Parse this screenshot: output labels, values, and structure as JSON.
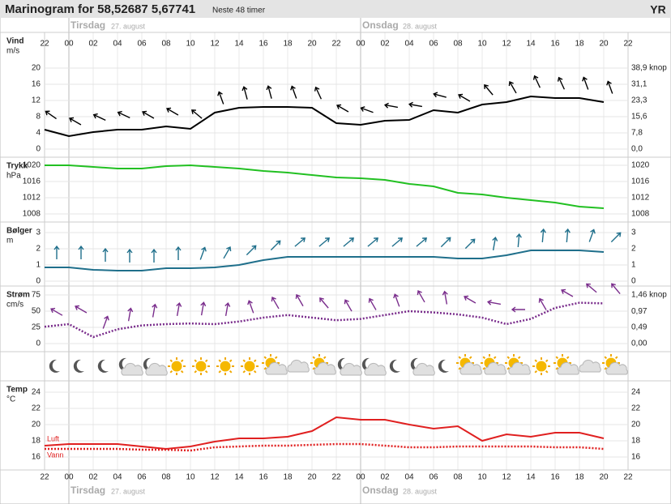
{
  "title": "Marinogram for 58,52687 5,67741",
  "subtitle": "Neste 48 timer",
  "logo": "YR",
  "time_labels": [
    "22",
    "00",
    "02",
    "04",
    "06",
    "08",
    "10",
    "12",
    "14",
    "16",
    "18",
    "20",
    "22",
    "00",
    "02",
    "04",
    "06",
    "08",
    "10",
    "12",
    "14",
    "16",
    "18",
    "20",
    "22"
  ],
  "days": [
    {
      "name": "Tirsdag",
      "date": "27. august"
    },
    {
      "name": "Onsdag",
      "date": "28. august"
    }
  ],
  "chart_data": [
    {
      "type": "line",
      "label": "Vind",
      "unit": "m/s",
      "y2unit": "knop",
      "ylim": [
        0,
        20
      ],
      "yticks": [
        0,
        4,
        8,
        12,
        16,
        20
      ],
      "y2lim": [
        0,
        38.9
      ],
      "y2ticks": [
        {
          "value": 0,
          "label": "0,0"
        },
        {
          "value": 7.8,
          "label": "7,8"
        },
        {
          "value": 15.6,
          "label": "15,6"
        },
        {
          "value": 23.3,
          "label": "23,3"
        },
        {
          "value": 31.1,
          "label": "31,1"
        },
        {
          "value": 38.9,
          "label": "38,9"
        }
      ],
      "series": [
        {
          "color": "#000000",
          "values": [
            4.8,
            3.2,
            4.2,
            4.8,
            4.8,
            5.6,
            5.0,
            9.0,
            10.2,
            10.4,
            10.4,
            10.2,
            6.4,
            6.0,
            7.0,
            7.2,
            9.6,
            9.0,
            11.0,
            11.6,
            13.0,
            12.6,
            12.6,
            11.6
          ],
          "direction": [
            305,
            300,
            295,
            295,
            300,
            300,
            310,
            340,
            345,
            345,
            340,
            335,
            300,
            290,
            280,
            280,
            285,
            300,
            320,
            330,
            335,
            335,
            340,
            340
          ]
        }
      ]
    },
    {
      "type": "line",
      "label": "Trykk",
      "unit": "hPa",
      "ylim": [
        1008,
        1020
      ],
      "yticks": [
        1008,
        1012,
        1016,
        1020
      ],
      "series": [
        {
          "color": "#22c022",
          "values": [
            1020,
            1020,
            1019.6,
            1019.2,
            1019.2,
            1019.8,
            1020,
            1019.6,
            1019.2,
            1018.6,
            1018.2,
            1017.6,
            1017.0,
            1016.8,
            1016.4,
            1015.4,
            1014.8,
            1013.2,
            1012.8,
            1012.0,
            1011.4,
            1010.8,
            1009.8,
            1009.4
          ]
        }
      ]
    },
    {
      "type": "line",
      "label": "Bølger",
      "unit": "m",
      "ylim": [
        0,
        3
      ],
      "yticks": [
        0,
        1,
        2,
        3
      ],
      "series": [
        {
          "color": "#1f6f8b",
          "values": [
            0.85,
            0.85,
            0.7,
            0.65,
            0.65,
            0.8,
            0.8,
            0.85,
            1.0,
            1.3,
            1.5,
            1.5,
            1.5,
            1.5,
            1.5,
            1.5,
            1.5,
            1.4,
            1.4,
            1.6,
            1.9,
            1.9,
            1.9,
            1.8
          ],
          "direction": [
            0,
            0,
            0,
            0,
            0,
            0,
            20,
            30,
            45,
            45,
            50,
            50,
            50,
            50,
            50,
            50,
            45,
            45,
            10,
            5,
            5,
            5,
            20,
            45
          ]
        }
      ]
    },
    {
      "type": "line",
      "label": "Strøm",
      "unit": "cm/s",
      "y2unit": "knop",
      "ylim": [
        0,
        75
      ],
      "yticks": [
        0,
        25,
        50,
        75
      ],
      "y2lim": [
        0,
        1.46
      ],
      "y2ticks": [
        {
          "value": 0,
          "label": "0,00"
        },
        {
          "value": 0.49,
          "label": "0,49"
        },
        {
          "value": 0.97,
          "label": "0,97"
        },
        {
          "value": 1.46,
          "label": "1,46"
        }
      ],
      "series": [
        {
          "color": "#7a2d8c",
          "dotted": true,
          "values": [
            26,
            30,
            10,
            22,
            28,
            30,
            31,
            30,
            34,
            40,
            44,
            40,
            36,
            38,
            44,
            50,
            48,
            45,
            40,
            30,
            38,
            55,
            63,
            62
          ],
          "direction": [
            300,
            300,
            20,
            10,
            10,
            10,
            10,
            10,
            340,
            330,
            330,
            320,
            330,
            330,
            340,
            330,
            350,
            300,
            280,
            270,
            330,
            300,
            310,
            320
          ]
        }
      ]
    },
    {
      "type": "symbols",
      "symbols": [
        "moon",
        "moon",
        "moon",
        "moon-cloud",
        "moon-cloud",
        "sun",
        "sun",
        "sun",
        "sun",
        "sun-cloud",
        "cloud",
        "sun-cloud",
        "moon-cloud",
        "moon-cloud",
        "moon",
        "moon-cloud",
        "moon",
        "sun-cloud",
        "sun-cloud",
        "sun-cloud",
        "sun",
        "sun-cloud",
        "cloud",
        "sun-cloud"
      ]
    },
    {
      "type": "line",
      "label": "Temp",
      "unit": "°C",
      "ylim": [
        16,
        24
      ],
      "yticks": [
        16,
        18,
        20,
        22,
        24
      ],
      "series": [
        {
          "name": "Luft",
          "color": "#e02020",
          "values": [
            17.4,
            17.6,
            17.6,
            17.6,
            17.3,
            17.0,
            17.3,
            17.9,
            18.3,
            18.3,
            18.5,
            19.2,
            20.9,
            20.6,
            20.6,
            20.0,
            19.5,
            19.8,
            18.0,
            18.8,
            18.5,
            19.0,
            19.0,
            18.3
          ]
        },
        {
          "name": "Vann",
          "color": "#e02020",
          "dotted": true,
          "values": [
            17.0,
            17.0,
            17.0,
            17.0,
            16.9,
            16.9,
            16.8,
            17.2,
            17.3,
            17.4,
            17.4,
            17.5,
            17.6,
            17.6,
            17.4,
            17.2,
            17.2,
            17.3,
            17.3,
            17.3,
            17.3,
            17.2,
            17.2,
            17.0
          ]
        }
      ]
    }
  ]
}
